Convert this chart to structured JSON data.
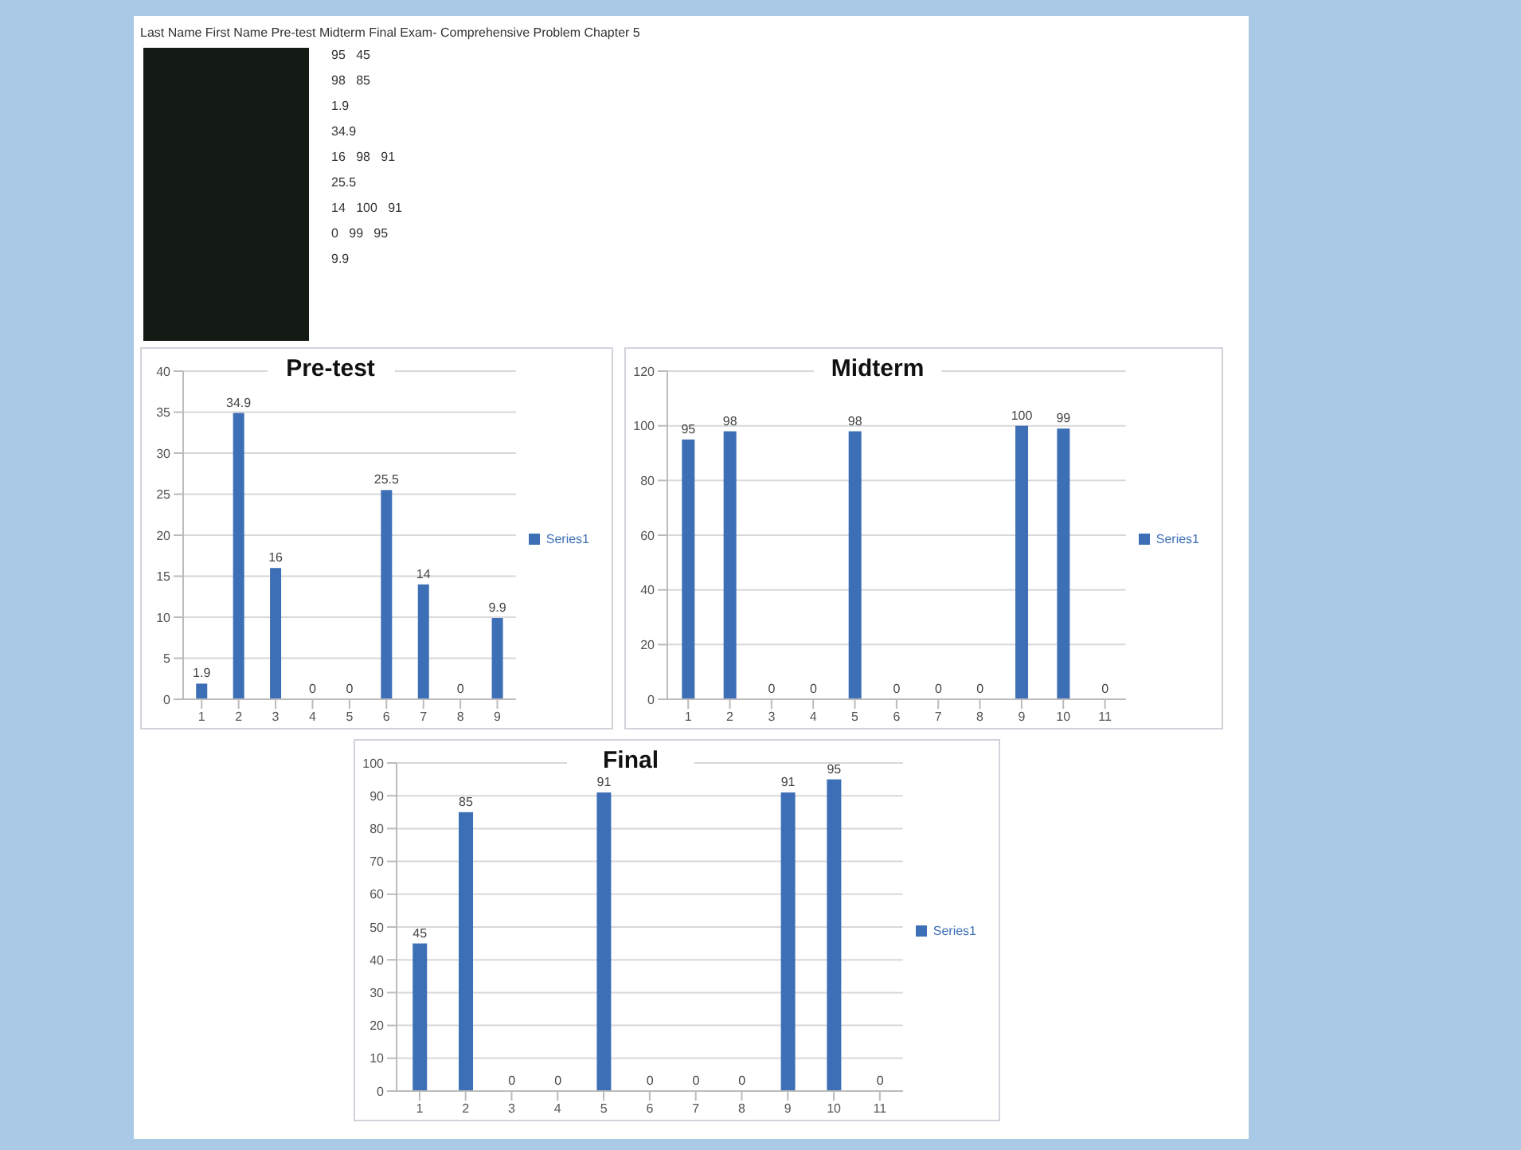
{
  "chart_data": [
    {
      "type": "other",
      "annotations": [
        "Last Name First Name Pre-test   Midterm Final Exam- Comprehensive Problem Chapter 5",
        "95   45",
        "98   85",
        "1.9",
        "34.9",
        "16   98   91",
        "25.5",
        "14   100   91",
        "0   99   95",
        "9.9"
      ]
    },
    {
      "type": "bar",
      "title": "Pre-test",
      "categories": [
        "1",
        "2",
        "3",
        "4",
        "5",
        "6",
        "7",
        "8",
        "9"
      ],
      "series": [
        {
          "name": "Series1",
          "color": "#3d6fb6",
          "values": [
            1.9,
            34.9,
            16,
            0,
            0,
            25.5,
            14,
            0,
            9.9
          ]
        }
      ],
      "ylim": [
        0,
        40
      ],
      "yticks": [
        0,
        5,
        10,
        15,
        20,
        25,
        30,
        35,
        40
      ],
      "grid": "y",
      "legend": "right",
      "data_labels": true
    },
    {
      "type": "bar",
      "title": "Midterm",
      "categories": [
        "1",
        "2",
        "3",
        "4",
        "5",
        "6",
        "7",
        "8",
        "9",
        "10",
        "11"
      ],
      "series": [
        {
          "name": "Series1",
          "color": "#3d6fb6",
          "values": [
            95,
            98,
            0,
            0,
            98,
            0,
            0,
            0,
            100,
            99,
            0
          ]
        }
      ],
      "ylim": [
        0,
        120
      ],
      "yticks": [
        0,
        20,
        40,
        60,
        80,
        100,
        120
      ],
      "grid": "y",
      "legend": "right",
      "data_labels": true
    },
    {
      "type": "bar",
      "title": "Final",
      "categories": [
        "1",
        "2",
        "3",
        "4",
        "5",
        "6",
        "7",
        "8",
        "9",
        "10",
        "11"
      ],
      "series": [
        {
          "name": "Series1",
          "color": "#3d6fb6",
          "values": [
            45,
            85,
            0,
            0,
            91,
            0,
            0,
            0,
            91,
            95,
            0
          ]
        }
      ],
      "ylim": [
        0,
        100
      ],
      "yticks": [
        0,
        10,
        20,
        30,
        40,
        50,
        60,
        70,
        80,
        90,
        100
      ],
      "grid": "y",
      "legend": "right",
      "data_labels": true
    }
  ]
}
